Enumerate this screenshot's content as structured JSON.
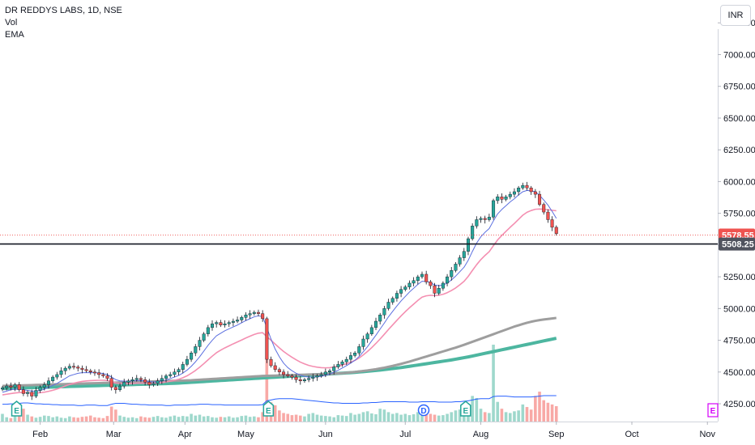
{
  "legend": {
    "title": "DR REDDYS LABS, 1D, NSE",
    "vol": "Vol",
    "ema": "EMA"
  },
  "currency_button": "INR",
  "colors": {
    "up": "#26a69a",
    "down": "#ef5350",
    "ema_fast": "#5b6fe0",
    "ema_mid": "#f48fb1",
    "ema_gray": "#9e9e9e",
    "ema_teal": "#4db6a0",
    "vol_up": "#9ed8cc",
    "vol_down": "#f8a9a6",
    "vol_ma": "#2962ff",
    "price_tag": "#ef5350",
    "line_tag": "#50535e"
  },
  "chart_data": {
    "type": "candlestick",
    "title": "DR REDDYS LABS, 1D, NSE",
    "y_ticks": [
      "7250.00",
      "7000.00",
      "6750.00",
      "6500.00",
      "6250.00",
      "6000.00",
      "5750.00",
      "5500.00",
      "5250.00",
      "5000.00",
      "4750.00",
      "4500.00",
      "4250.00"
    ],
    "x_ticks": [
      "Feb",
      "Mar",
      "Apr",
      "May",
      "Jun",
      "Jul",
      "Aug",
      "Sep",
      "Oct",
      "Nov"
    ],
    "ylim": [
      4110,
      7430
    ],
    "last_price": "5578.55",
    "horizontal_line": "5508.25",
    "closes": [
      4375,
      4390,
      4380,
      4400,
      4360,
      4330,
      4340,
      4310,
      4355,
      4380,
      4400,
      4430,
      4460,
      4480,
      4510,
      4530,
      4545,
      4540,
      4530,
      4520,
      4510,
      4500,
      4495,
      4480,
      4470,
      4450,
      4380,
      4360,
      4390,
      4420,
      4430,
      4440,
      4450,
      4440,
      4420,
      4400,
      4410,
      4430,
      4450,
      4470,
      4480,
      4500,
      4520,
      4560,
      4600,
      4650,
      4700,
      4750,
      4800,
      4850,
      4880,
      4890,
      4870,
      4880,
      4890,
      4900,
      4910,
      4930,
      4950,
      4960,
      4970,
      4960,
      4920,
      4600,
      4550,
      4520,
      4500,
      4480,
      4470,
      4460,
      4440,
      4430,
      4440,
      4450,
      4460,
      4470,
      4480,
      4500,
      4510,
      4540,
      4560,
      4580,
      4600,
      4630,
      4650,
      4700,
      4760,
      4800,
      4850,
      4900,
      4950,
      5000,
      5050,
      5080,
      5120,
      5150,
      5170,
      5200,
      5220,
      5250,
      5270,
      5210,
      5180,
      5120,
      5160,
      5200,
      5250,
      5300,
      5350,
      5400,
      5450,
      5550,
      5650,
      5700,
      5710,
      5700,
      5720,
      5850,
      5880,
      5860,
      5880,
      5900,
      5920,
      5950,
      5970,
      5950,
      5920,
      5900,
      5820,
      5760,
      5700,
      5640,
      5590
    ],
    "ema_fast": [
      4340,
      4350,
      4360,
      4365,
      4365,
      4360,
      4355,
      4350,
      4350,
      4355,
      4365,
      4380,
      4395,
      4410,
      4430,
      4450,
      4470,
      4480,
      4490,
      4495,
      4495,
      4495,
      4495,
      4492,
      4488,
      4480,
      4460,
      4440,
      4430,
      4428,
      4428,
      4430,
      4433,
      4434,
      4430,
      4425,
      4422,
      4424,
      4430,
      4438,
      4448,
      4460,
      4473,
      4492,
      4515,
      4545,
      4580,
      4620,
      4665,
      4710,
      4750,
      4785,
      4805,
      4825,
      4840,
      4855,
      4870,
      4888,
      4905,
      4920,
      4935,
      4942,
      4937,
      4850,
      4760,
      4680,
      4620,
      4570,
      4535,
      4510,
      4490,
      4475,
      4465,
      4460,
      4460,
      4462,
      4466,
      4474,
      4484,
      4498,
      4514,
      4532,
      4550,
      4570,
      4592,
      4622,
      4660,
      4700,
      4745,
      4790,
      4838,
      4885,
      4935,
      4978,
      5020,
      5060,
      5095,
      5130,
      5160,
      5190,
      5215,
      5213,
      5205,
      5185,
      5180,
      5185,
      5200,
      5225,
      5255,
      5290,
      5325,
      5380,
      5450,
      5515,
      5565,
      5600,
      5630,
      5690,
      5745,
      5780,
      5810,
      5840,
      5865,
      5895,
      5920,
      5930,
      5927,
      5920,
      5892,
      5855,
      5815,
      5765,
      5710
    ],
    "ema_mid": [
      4320,
      4325,
      4330,
      4335,
      4338,
      4338,
      4337,
      4335,
      4335,
      4337,
      4341,
      4348,
      4356,
      4366,
      4378,
      4390,
      4402,
      4412,
      4420,
      4426,
      4430,
      4432,
      4434,
      4435,
      4435,
      4434,
      4425,
      4414,
      4410,
      4408,
      4408,
      4410,
      4412,
      4413,
      4412,
      4411,
      4411,
      4413,
      4417,
      4422,
      4428,
      4435,
      4443,
      4455,
      4470,
      4490,
      4512,
      4538,
      4566,
      4596,
      4625,
      4652,
      4672,
      4690,
      4706,
      4722,
      4737,
      4752,
      4768,
      4782,
      4796,
      4806,
      4810,
      4779,
      4750,
      4720,
      4690,
      4662,
      4638,
      4616,
      4596,
      4578,
      4564,
      4552,
      4544,
      4538,
      4534,
      4533,
      4534,
      4539,
      4546,
      4555,
      4565,
      4578,
      4592,
      4610,
      4635,
      4662,
      4692,
      4725,
      4760,
      4797,
      4835,
      4871,
      4907,
      4942,
      4975,
      5006,
      5035,
      5064,
      5090,
      5100,
      5104,
      5102,
      5105,
      5112,
      5125,
      5142,
      5162,
      5187,
      5214,
      5253,
      5300,
      5345,
      5385,
      5418,
      5448,
      5495,
      5540,
      5575,
      5608,
      5640,
      5670,
      5703,
      5735,
      5758,
      5772,
      5782,
      5784,
      5782,
      5778,
      5774,
      5770
    ],
    "ema_gray": [
      4390,
      4391,
      4392,
      4393,
      4394,
      4395,
      4396,
      4397,
      4398,
      4399,
      4400,
      4401,
      4402,
      4403,
      4404,
      4405,
      4406,
      4407,
      4408,
      4409,
      4410,
      4411,
      4412,
      4413,
      4414,
      4415,
      4416,
      4417,
      4418,
      4419,
      4420,
      4421,
      4422,
      4423,
      4424,
      4425,
      4426,
      4427,
      4428,
      4429,
      4430,
      4431,
      4432,
      4433,
      4434,
      4435,
      4437,
      4439,
      4441,
      4443,
      4445,
      4447,
      4449,
      4451,
      4453,
      4455,
      4457,
      4459,
      4461,
      4463,
      4465,
      4467,
      4469,
      4470,
      4471,
      4472,
      4473,
      4474,
      4475,
      4476,
      4477,
      4478,
      4479,
      4480,
      4481,
      4482,
      4483,
      4484,
      4485,
      4487,
      4489,
      4491,
      4494,
      4497,
      4500,
      4504,
      4508,
      4512,
      4517,
      4522,
      4528,
      4534,
      4541,
      4548,
      4556,
      4564,
      4573,
      4582,
      4592,
      4602,
      4612,
      4622,
      4632,
      4642,
      4652,
      4662,
      4672,
      4682,
      4692,
      4703,
      4714,
      4726,
      4738,
      4750,
      4762,
      4774,
      4786,
      4798,
      4810,
      4822,
      4834,
      4846,
      4858,
      4868,
      4878,
      4888,
      4896,
      4903,
      4909,
      4914,
      4918,
      4922,
      4926
    ],
    "ema_teal": [
      4370,
      4371,
      4372,
      4373,
      4374,
      4375,
      4376,
      4377,
      4378,
      4379,
      4380,
      4381,
      4382,
      4383,
      4384,
      4385,
      4386,
      4387,
      4388,
      4389,
      4390,
      4391,
      4392,
      4393,
      4394,
      4395,
      4396,
      4397,
      4398,
      4399,
      4400,
      4401,
      4402,
      4403,
      4404,
      4405,
      4406,
      4407,
      4408,
      4409,
      4410,
      4411,
      4413,
      4415,
      4417,
      4419,
      4421,
      4423,
      4425,
      4427,
      4429,
      4431,
      4433,
      4435,
      4437,
      4439,
      4441,
      4443,
      4445,
      4447,
      4449,
      4451,
      4453,
      4455,
      4457,
      4459,
      4461,
      4463,
      4465,
      4467,
      4469,
      4471,
      4473,
      4475,
      4477,
      4479,
      4481,
      4483,
      4485,
      4487,
      4489,
      4491,
      4493,
      4495,
      4497,
      4500,
      4503,
      4506,
      4509,
      4512,
      4515,
      4519,
      4523,
      4527,
      4531,
      4535,
      4540,
      4545,
      4550,
      4555,
      4560,
      4565,
      4570,
      4575,
      4580,
      4585,
      4590,
      4595,
      4601,
      4607,
      4613,
      4619,
      4626,
      4633,
      4640,
      4647,
      4654,
      4661,
      4668,
      4675,
      4682,
      4689,
      4696,
      4703,
      4710,
      4717,
      4724,
      4731,
      4738,
      4745,
      4752,
      4759,
      4766
    ],
    "volume": [
      18,
      10,
      8,
      14,
      26,
      30,
      16,
      12,
      9,
      11,
      14,
      13,
      10,
      12,
      9,
      8,
      12,
      10,
      9,
      11,
      12,
      14,
      10,
      9,
      8,
      13,
      35,
      28,
      14,
      11,
      9,
      10,
      8,
      12,
      10,
      9,
      11,
      13,
      10,
      9,
      12,
      14,
      11,
      13,
      12,
      18,
      14,
      16,
      12,
      13,
      10,
      9,
      11,
      10,
      12,
      9,
      10,
      13,
      14,
      11,
      12,
      10,
      22,
      150,
      45,
      38,
      26,
      20,
      18,
      15,
      16,
      14,
      12,
      18,
      20,
      16,
      14,
      13,
      12,
      10,
      15,
      14,
      13,
      20,
      16,
      18,
      22,
      24,
      19,
      17,
      30,
      28,
      22,
      18,
      20,
      16,
      18,
      15,
      17,
      22,
      25,
      20,
      18,
      16,
      14,
      15,
      18,
      22,
      26,
      28,
      24,
      40,
      60,
      55,
      30,
      22,
      20,
      180,
      46,
      30,
      22,
      20,
      24,
      26,
      40,
      34,
      28,
      60,
      70,
      50,
      44,
      40,
      36
    ],
    "volume_ma": [
      14,
      14,
      15,
      15,
      16,
      17,
      17,
      16,
      15,
      15,
      14,
      14,
      13,
      13,
      12,
      12,
      12,
      12,
      11,
      11,
      12,
      12,
      12,
      11,
      11,
      11,
      14,
      16,
      16,
      16,
      15,
      14,
      14,
      13,
      13,
      12,
      12,
      12,
      12,
      11,
      11,
      12,
      12,
      12,
      12,
      13,
      13,
      14,
      14,
      14,
      13,
      13,
      13,
      12,
      12,
      12,
      12,
      12,
      12,
      12,
      12,
      12,
      13,
      22,
      24,
      26,
      27,
      27,
      27,
      27,
      26,
      25,
      24,
      23,
      22,
      21,
      20,
      19,
      18,
      17,
      17,
      16,
      16,
      16,
      16,
      16,
      17,
      17,
      18,
      18,
      19,
      20,
      20,
      20,
      20,
      20,
      20,
      19,
      19,
      19,
      20,
      20,
      20,
      20,
      19,
      19,
      19,
      19,
      20,
      20,
      21,
      22,
      24,
      26,
      27,
      27,
      27,
      32,
      33,
      33,
      33,
      32,
      31,
      31,
      31,
      31,
      31,
      32,
      33,
      34,
      34,
      34,
      34
    ]
  },
  "event_markers": [
    "E",
    "E",
    "D",
    "E",
    "E"
  ]
}
